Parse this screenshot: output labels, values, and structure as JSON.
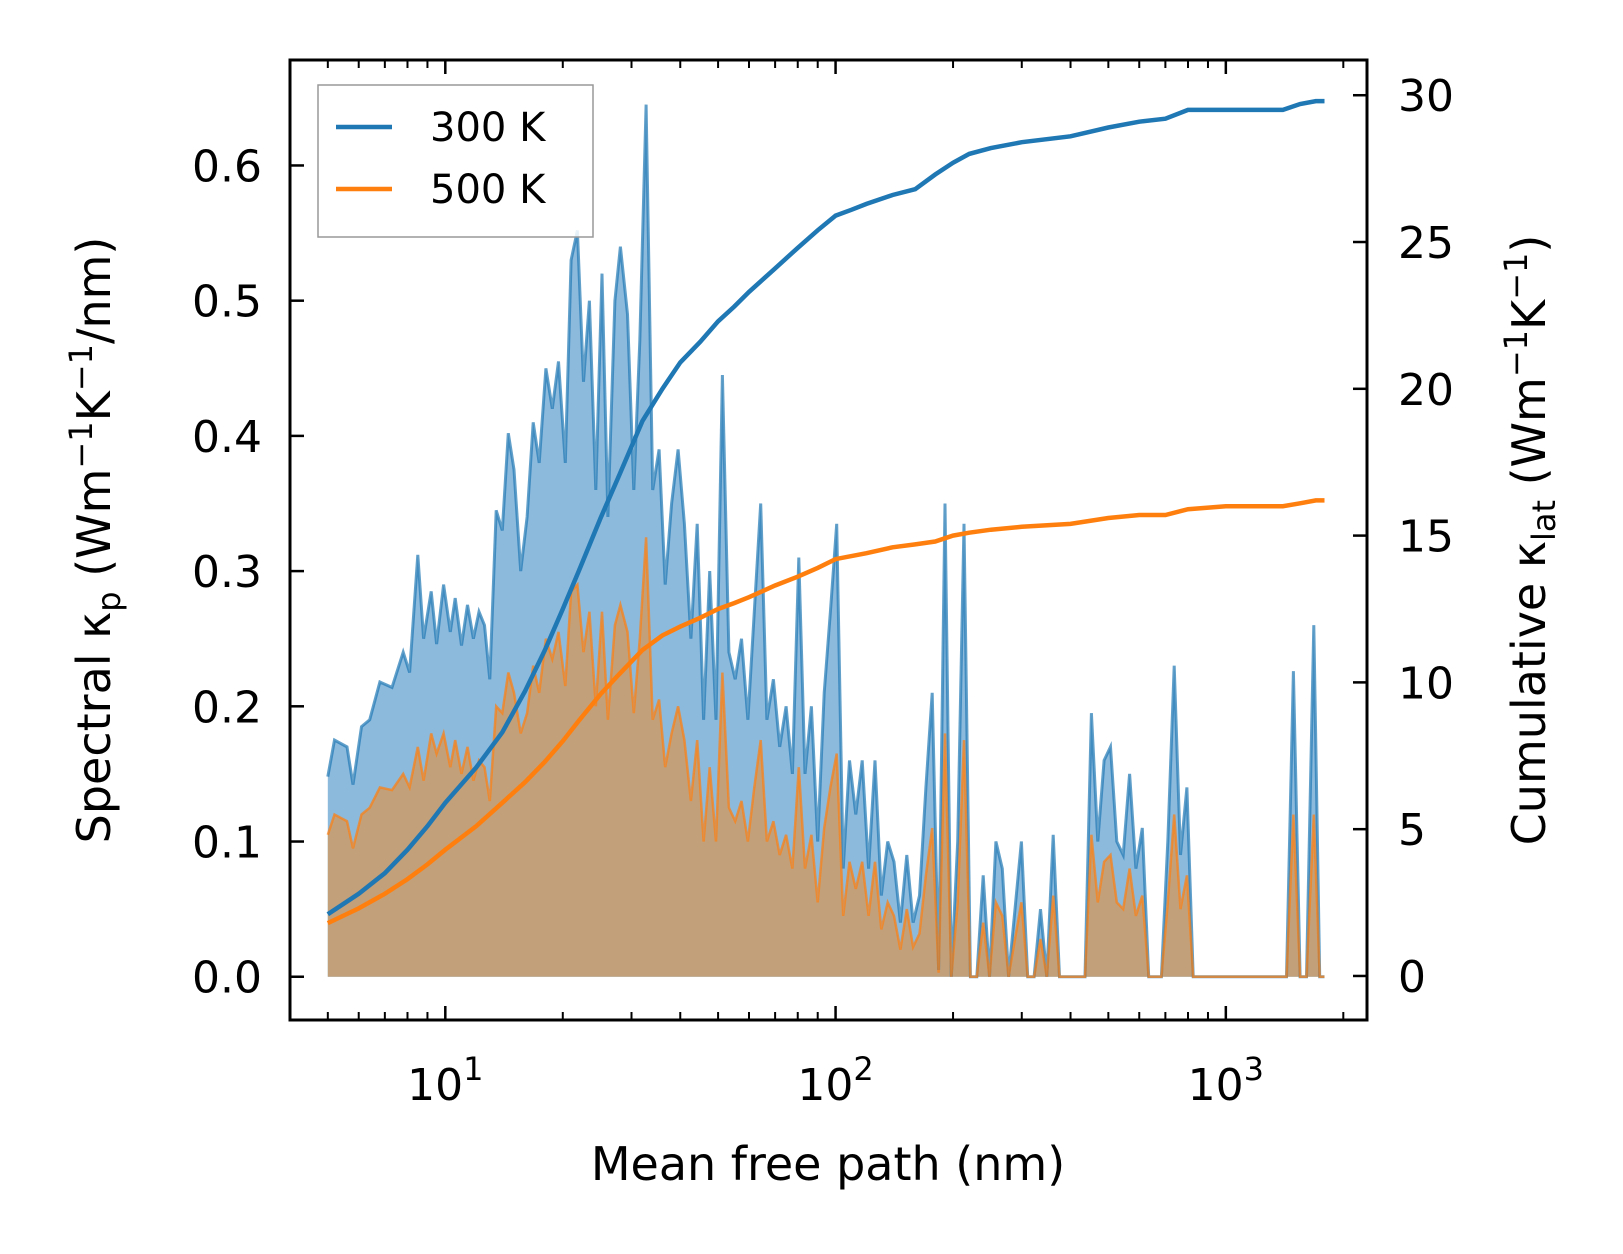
{
  "chart_data": {
    "type": "area",
    "xscale": "log",
    "xlabel": "Mean free path (nm)",
    "ylabel_left": {
      "main": "Spectral κ",
      "sub": "p",
      "units_pre": " (Wm",
      "sup1": "−1",
      "mid": "K",
      "sup2": "−1",
      "units_post": "/nm)"
    },
    "ylabel_right": {
      "main": "Cumulative κ",
      "sub": "lat",
      "units_pre": " (Wm",
      "sup1": "−1",
      "mid": "K",
      "sup2": "−1",
      "units_post": ")"
    },
    "xlim": [
      4.0,
      2300
    ],
    "ylim_left": [
      -0.032,
      0.678
    ],
    "ylim_right": [
      -1.5,
      31.2
    ],
    "x_ticks": [
      {
        "value": 10,
        "base": "10",
        "exp": "1"
      },
      {
        "value": 100,
        "base": "10",
        "exp": "2"
      },
      {
        "value": 1000,
        "base": "10",
        "exp": "3"
      }
    ],
    "y_ticks_left": [
      "0.0",
      "0.1",
      "0.2",
      "0.3",
      "0.4",
      "0.5",
      "0.6"
    ],
    "y_ticks_right": [
      "0",
      "5",
      "10",
      "15",
      "20",
      "25",
      "30"
    ],
    "legend": {
      "position": "upper-left",
      "entries": [
        "300 K",
        "500 K"
      ]
    },
    "colors": {
      "s300": "#1f77b4",
      "s500": "#ff7f0e",
      "fill300": "#7fb2d9",
      "fill500": "#c2a07a"
    },
    "spectral_300": [
      [
        5.0,
        0.148
      ],
      [
        5.2,
        0.175
      ],
      [
        5.6,
        0.17
      ],
      [
        5.8,
        0.142
      ],
      [
        6.1,
        0.185
      ],
      [
        6.4,
        0.19
      ],
      [
        6.8,
        0.218
      ],
      [
        7.3,
        0.214
      ],
      [
        7.8,
        0.24
      ],
      [
        8.1,
        0.225
      ],
      [
        8.5,
        0.312
      ],
      [
        8.8,
        0.25
      ],
      [
        9.2,
        0.285
      ],
      [
        9.5,
        0.246
      ],
      [
        9.9,
        0.29
      ],
      [
        10.3,
        0.255
      ],
      [
        10.6,
        0.28
      ],
      [
        11.0,
        0.245
      ],
      [
        11.4,
        0.275
      ],
      [
        11.8,
        0.25
      ],
      [
        12.2,
        0.27
      ],
      [
        12.6,
        0.26
      ],
      [
        13.0,
        0.22
      ],
      [
        13.5,
        0.345
      ],
      [
        14.0,
        0.33
      ],
      [
        14.5,
        0.402
      ],
      [
        15.0,
        0.375
      ],
      [
        15.6,
        0.3
      ],
      [
        16.2,
        0.34
      ],
      [
        16.8,
        0.41
      ],
      [
        17.4,
        0.38
      ],
      [
        18.1,
        0.45
      ],
      [
        18.8,
        0.42
      ],
      [
        19.5,
        0.455
      ],
      [
        20.3,
        0.38
      ],
      [
        21.0,
        0.53
      ],
      [
        21.8,
        0.552
      ],
      [
        22.6,
        0.44
      ],
      [
        23.4,
        0.5
      ],
      [
        24.3,
        0.36
      ],
      [
        25.2,
        0.52
      ],
      [
        26.1,
        0.34
      ],
      [
        27.2,
        0.5
      ],
      [
        28.1,
        0.54
      ],
      [
        29.3,
        0.49
      ],
      [
        30.4,
        0.36
      ],
      [
        31.5,
        0.47
      ],
      [
        32.7,
        0.645
      ],
      [
        34.0,
        0.36
      ],
      [
        35.3,
        0.39
      ],
      [
        36.6,
        0.29
      ],
      [
        38.0,
        0.35
      ],
      [
        39.5,
        0.39
      ],
      [
        41.0,
        0.335
      ],
      [
        42.6,
        0.25
      ],
      [
        44.2,
        0.335
      ],
      [
        45.9,
        0.19
      ],
      [
        47.6,
        0.3
      ],
      [
        49.4,
        0.19
      ],
      [
        51.3,
        0.445
      ],
      [
        53.3,
        0.24
      ],
      [
        55.3,
        0.22
      ],
      [
        57.4,
        0.25
      ],
      [
        59.6,
        0.19
      ],
      [
        61.9,
        0.27
      ],
      [
        64.3,
        0.35
      ],
      [
        66.7,
        0.19
      ],
      [
        69.3,
        0.22
      ],
      [
        71.9,
        0.17
      ],
      [
        74.7,
        0.2
      ],
      [
        77.5,
        0.15
      ],
      [
        80.5,
        0.31
      ],
      [
        83.5,
        0.15
      ],
      [
        86.7,
        0.2
      ],
      [
        90.0,
        0.1
      ],
      [
        93.5,
        0.21
      ],
      [
        97.0,
        0.27
      ],
      [
        100.7,
        0.335
      ],
      [
        104.6,
        0.08
      ],
      [
        108.6,
        0.16
      ],
      [
        112.7,
        0.12
      ],
      [
        117.0,
        0.16
      ],
      [
        121.5,
        0.08
      ],
      [
        126.2,
        0.16
      ],
      [
        131.0,
        0.06
      ],
      [
        136.0,
        0.1
      ],
      [
        141.2,
        0.085
      ],
      [
        146.6,
        0.04
      ],
      [
        152.2,
        0.09
      ],
      [
        158.0,
        0.04
      ],
      [
        164.1,
        0.06
      ],
      [
        170.4,
        0.14
      ],
      [
        176.9,
        0.21
      ],
      [
        183.7,
        0.005
      ],
      [
        190.7,
        0.35
      ],
      [
        198.0,
        0.0
      ],
      [
        205.6,
        0.1
      ],
      [
        213.4,
        0.335
      ],
      [
        221.6,
        0.0
      ],
      [
        230.1,
        0.0
      ],
      [
        238.9,
        0.075
      ],
      [
        248.0,
        0.0
      ],
      [
        257.5,
        0.1
      ],
      [
        267.4,
        0.08
      ],
      [
        277.6,
        0.0
      ],
      [
        288.2,
        0.05
      ],
      [
        299.3,
        0.1
      ],
      [
        310.7,
        0.0
      ],
      [
        322.6,
        0.0
      ],
      [
        335.0,
        0.05
      ],
      [
        347.8,
        0.0
      ],
      [
        361.1,
        0.105
      ],
      [
        374.9,
        0.0
      ],
      [
        389.3,
        0.0
      ],
      [
        404.2,
        0.0
      ],
      [
        419.6,
        0.0
      ],
      [
        435.7,
        0.0
      ],
      [
        452.4,
        0.195
      ],
      [
        469.7,
        0.1
      ],
      [
        487.7,
        0.16
      ],
      [
        506.3,
        0.17
      ],
      [
        525.7,
        0.1
      ],
      [
        545.9,
        0.09
      ],
      [
        566.7,
        0.15
      ],
      [
        588.4,
        0.08
      ],
      [
        611.0,
        0.11
      ],
      [
        634.4,
        0.0
      ],
      [
        658.6,
        0.0
      ],
      [
        683.8,
        0.0
      ],
      [
        710.0,
        0.1
      ],
      [
        737.2,
        0.23
      ],
      [
        765.4,
        0.09
      ],
      [
        794.7,
        0.14
      ],
      [
        825.1,
        0.0
      ],
      [
        856.7,
        0.0
      ],
      [
        889.5,
        0.0
      ],
      [
        923.6,
        0.0
      ],
      [
        1000,
        0.0
      ],
      [
        1100,
        0.0
      ],
      [
        1200,
        0.0
      ],
      [
        1300,
        0.0
      ],
      [
        1380,
        0.0
      ],
      [
        1430,
        0.0
      ],
      [
        1490,
        0.226
      ],
      [
        1550,
        0.0
      ],
      [
        1610,
        0.0
      ],
      [
        1680,
        0.26
      ],
      [
        1740,
        0.0
      ],
      [
        1790,
        0.0
      ]
    ],
    "spectral_500": [
      [
        5.0,
        0.105
      ],
      [
        5.2,
        0.12
      ],
      [
        5.6,
        0.115
      ],
      [
        5.8,
        0.095
      ],
      [
        6.1,
        0.12
      ],
      [
        6.4,
        0.125
      ],
      [
        6.8,
        0.14
      ],
      [
        7.3,
        0.138
      ],
      [
        7.8,
        0.15
      ],
      [
        8.1,
        0.14
      ],
      [
        8.5,
        0.17
      ],
      [
        8.8,
        0.145
      ],
      [
        9.2,
        0.18
      ],
      [
        9.5,
        0.165
      ],
      [
        9.9,
        0.18
      ],
      [
        10.3,
        0.155
      ],
      [
        10.6,
        0.175
      ],
      [
        11.0,
        0.15
      ],
      [
        11.4,
        0.17
      ],
      [
        11.8,
        0.145
      ],
      [
        12.2,
        0.16
      ],
      [
        12.6,
        0.155
      ],
      [
        13.0,
        0.13
      ],
      [
        13.5,
        0.2
      ],
      [
        14.0,
        0.195
      ],
      [
        14.5,
        0.225
      ],
      [
        15.0,
        0.21
      ],
      [
        15.6,
        0.18
      ],
      [
        16.2,
        0.195
      ],
      [
        16.8,
        0.23
      ],
      [
        17.4,
        0.21
      ],
      [
        18.1,
        0.25
      ],
      [
        18.8,
        0.235
      ],
      [
        19.5,
        0.255
      ],
      [
        20.3,
        0.215
      ],
      [
        21.0,
        0.285
      ],
      [
        21.8,
        0.29
      ],
      [
        22.6,
        0.24
      ],
      [
        23.4,
        0.27
      ],
      [
        24.3,
        0.2
      ],
      [
        25.2,
        0.27
      ],
      [
        26.1,
        0.19
      ],
      [
        27.2,
        0.26
      ],
      [
        28.1,
        0.275
      ],
      [
        29.3,
        0.255
      ],
      [
        30.4,
        0.195
      ],
      [
        31.5,
        0.25
      ],
      [
        32.7,
        0.325
      ],
      [
        34.0,
        0.19
      ],
      [
        35.3,
        0.205
      ],
      [
        36.6,
        0.155
      ],
      [
        38.0,
        0.18
      ],
      [
        39.5,
        0.2
      ],
      [
        41.0,
        0.175
      ],
      [
        42.6,
        0.13
      ],
      [
        44.2,
        0.175
      ],
      [
        45.9,
        0.1
      ],
      [
        47.6,
        0.155
      ],
      [
        49.4,
        0.1
      ],
      [
        51.3,
        0.225
      ],
      [
        53.3,
        0.125
      ],
      [
        55.3,
        0.115
      ],
      [
        57.4,
        0.13
      ],
      [
        59.6,
        0.1
      ],
      [
        61.9,
        0.14
      ],
      [
        64.3,
        0.175
      ],
      [
        66.7,
        0.1
      ],
      [
        69.3,
        0.115
      ],
      [
        71.9,
        0.09
      ],
      [
        74.7,
        0.105
      ],
      [
        77.5,
        0.08
      ],
      [
        80.5,
        0.155
      ],
      [
        83.5,
        0.08
      ],
      [
        86.7,
        0.105
      ],
      [
        90.0,
        0.055
      ],
      [
        93.5,
        0.11
      ],
      [
        97.0,
        0.14
      ],
      [
        100.7,
        0.165
      ],
      [
        104.6,
        0.045
      ],
      [
        108.6,
        0.085
      ],
      [
        112.7,
        0.065
      ],
      [
        117.0,
        0.085
      ],
      [
        121.5,
        0.045
      ],
      [
        126.2,
        0.085
      ],
      [
        131.0,
        0.035
      ],
      [
        136.0,
        0.055
      ],
      [
        141.2,
        0.045
      ],
      [
        146.6,
        0.02
      ],
      [
        152.2,
        0.05
      ],
      [
        158.0,
        0.022
      ],
      [
        164.1,
        0.032
      ],
      [
        170.4,
        0.075
      ],
      [
        176.9,
        0.11
      ],
      [
        183.7,
        0.003
      ],
      [
        190.7,
        0.18
      ],
      [
        198.0,
        0.0
      ],
      [
        205.6,
        0.055
      ],
      [
        213.4,
        0.175
      ],
      [
        221.6,
        0.0
      ],
      [
        230.1,
        0.0
      ],
      [
        238.9,
        0.04
      ],
      [
        248.0,
        0.0
      ],
      [
        257.5,
        0.055
      ],
      [
        267.4,
        0.045
      ],
      [
        277.6,
        0.0
      ],
      [
        288.2,
        0.028
      ],
      [
        299.3,
        0.055
      ],
      [
        310.7,
        0.0
      ],
      [
        322.6,
        0.0
      ],
      [
        335.0,
        0.028
      ],
      [
        347.8,
        0.0
      ],
      [
        361.1,
        0.06
      ],
      [
        374.9,
        0.0
      ],
      [
        389.3,
        0.0
      ],
      [
        404.2,
        0.0
      ],
      [
        419.6,
        0.0
      ],
      [
        435.7,
        0.0
      ],
      [
        452.4,
        0.105
      ],
      [
        469.7,
        0.055
      ],
      [
        487.7,
        0.085
      ],
      [
        506.3,
        0.09
      ],
      [
        525.7,
        0.055
      ],
      [
        545.9,
        0.05
      ],
      [
        566.7,
        0.08
      ],
      [
        588.4,
        0.045
      ],
      [
        611.0,
        0.06
      ],
      [
        634.4,
        0.0
      ],
      [
        658.6,
        0.0
      ],
      [
        683.8,
        0.0
      ],
      [
        710.0,
        0.055
      ],
      [
        737.2,
        0.12
      ],
      [
        765.4,
        0.05
      ],
      [
        794.7,
        0.075
      ],
      [
        825.1,
        0.0
      ],
      [
        856.7,
        0.0
      ],
      [
        889.5,
        0.0
      ],
      [
        923.6,
        0.0
      ],
      [
        1000,
        0.0
      ],
      [
        1100,
        0.0
      ],
      [
        1200,
        0.0
      ],
      [
        1300,
        0.0
      ],
      [
        1380,
        0.0
      ],
      [
        1430,
        0.0
      ],
      [
        1490,
        0.12
      ],
      [
        1550,
        0.0
      ],
      [
        1610,
        0.0
      ],
      [
        1680,
        0.12
      ],
      [
        1740,
        0.0
      ],
      [
        1790,
        0.0
      ]
    ],
    "cumulative_300": [
      [
        5.0,
        2.1
      ],
      [
        6,
        2.8
      ],
      [
        7,
        3.5
      ],
      [
        8,
        4.3
      ],
      [
        9,
        5.1
      ],
      [
        10,
        5.9
      ],
      [
        12,
        7.1
      ],
      [
        14,
        8.3
      ],
      [
        16,
        9.7
      ],
      [
        18,
        11.1
      ],
      [
        20,
        12.5
      ],
      [
        22,
        13.8
      ],
      [
        25,
        15.6
      ],
      [
        28,
        17.1
      ],
      [
        32,
        18.9
      ],
      [
        36,
        20.0
      ],
      [
        40,
        20.9
      ],
      [
        45,
        21.6
      ],
      [
        50,
        22.3
      ],
      [
        55,
        22.8
      ],
      [
        60,
        23.3
      ],
      [
        70,
        24.1
      ],
      [
        80,
        24.8
      ],
      [
        90,
        25.4
      ],
      [
        100,
        25.9
      ],
      [
        110,
        26.1
      ],
      [
        120,
        26.3
      ],
      [
        140,
        26.6
      ],
      [
        160,
        26.8
      ],
      [
        180,
        27.3
      ],
      [
        200,
        27.7
      ],
      [
        220,
        28.0
      ],
      [
        250,
        28.2
      ],
      [
        300,
        28.4
      ],
      [
        400,
        28.6
      ],
      [
        500,
        28.9
      ],
      [
        600,
        29.1
      ],
      [
        700,
        29.2
      ],
      [
        800,
        29.5
      ],
      [
        1000,
        29.5
      ],
      [
        1200,
        29.5
      ],
      [
        1400,
        29.5
      ],
      [
        1550,
        29.7
      ],
      [
        1700,
        29.8
      ],
      [
        1790,
        29.8
      ]
    ],
    "cumulative_500": [
      [
        5.0,
        1.8
      ],
      [
        6,
        2.3
      ],
      [
        7,
        2.8
      ],
      [
        8,
        3.3
      ],
      [
        9,
        3.8
      ],
      [
        10,
        4.3
      ],
      [
        12,
        5.1
      ],
      [
        14,
        5.9
      ],
      [
        16,
        6.6
      ],
      [
        18,
        7.3
      ],
      [
        20,
        8.0
      ],
      [
        22,
        8.7
      ],
      [
        25,
        9.6
      ],
      [
        28,
        10.3
      ],
      [
        32,
        11.1
      ],
      [
        36,
        11.6
      ],
      [
        40,
        11.9
      ],
      [
        45,
        12.2
      ],
      [
        50,
        12.5
      ],
      [
        55,
        12.7
      ],
      [
        60,
        12.9
      ],
      [
        70,
        13.3
      ],
      [
        80,
        13.6
      ],
      [
        90,
        13.9
      ],
      [
        100,
        14.2
      ],
      [
        120,
        14.4
      ],
      [
        140,
        14.6
      ],
      [
        160,
        14.7
      ],
      [
        180,
        14.8
      ],
      [
        200,
        15.0
      ],
      [
        220,
        15.1
      ],
      [
        250,
        15.2
      ],
      [
        300,
        15.3
      ],
      [
        400,
        15.4
      ],
      [
        500,
        15.6
      ],
      [
        600,
        15.7
      ],
      [
        700,
        15.7
      ],
      [
        800,
        15.9
      ],
      [
        1000,
        16.0
      ],
      [
        1200,
        16.0
      ],
      [
        1400,
        16.0
      ],
      [
        1550,
        16.1
      ],
      [
        1700,
        16.2
      ],
      [
        1790,
        16.2
      ]
    ]
  }
}
